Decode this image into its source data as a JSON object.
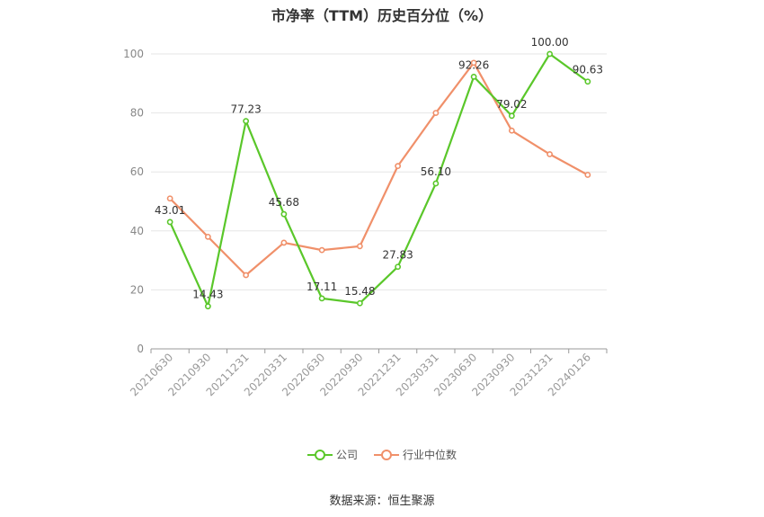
{
  "chart_data": {
    "type": "line",
    "title": "市净率（TTM）历史百分位（%）",
    "categories": [
      "20210630",
      "20210930",
      "20211231",
      "20220331",
      "20220630",
      "20220930",
      "20221231",
      "20230331",
      "20230630",
      "20230930",
      "20231231",
      "20240126"
    ],
    "ylim": [
      0,
      100
    ],
    "yticks": [
      "0",
      "20",
      "40",
      "60",
      "80",
      "100"
    ],
    "grid": true,
    "legend_position": "bottom",
    "series": [
      {
        "name": "公司",
        "color": "#5ac72a",
        "values": [
          43.01,
          14.43,
          77.23,
          45.68,
          17.11,
          15.48,
          27.83,
          56.1,
          92.26,
          79.02,
          100.0,
          90.63
        ],
        "labels": [
          "43.01",
          "14.43",
          "77.23",
          "45.68",
          "17.11",
          "15.48",
          "27.83",
          "56.10",
          "92.26",
          "79.02",
          "100.00",
          "90.63"
        ]
      },
      {
        "name": "行业中位数",
        "color": "#f0906a",
        "values": [
          51,
          38,
          25,
          36,
          33.5,
          34.8,
          62,
          80,
          97,
          74,
          66,
          59
        ]
      }
    ],
    "source": "数据来源：恒生聚源"
  }
}
